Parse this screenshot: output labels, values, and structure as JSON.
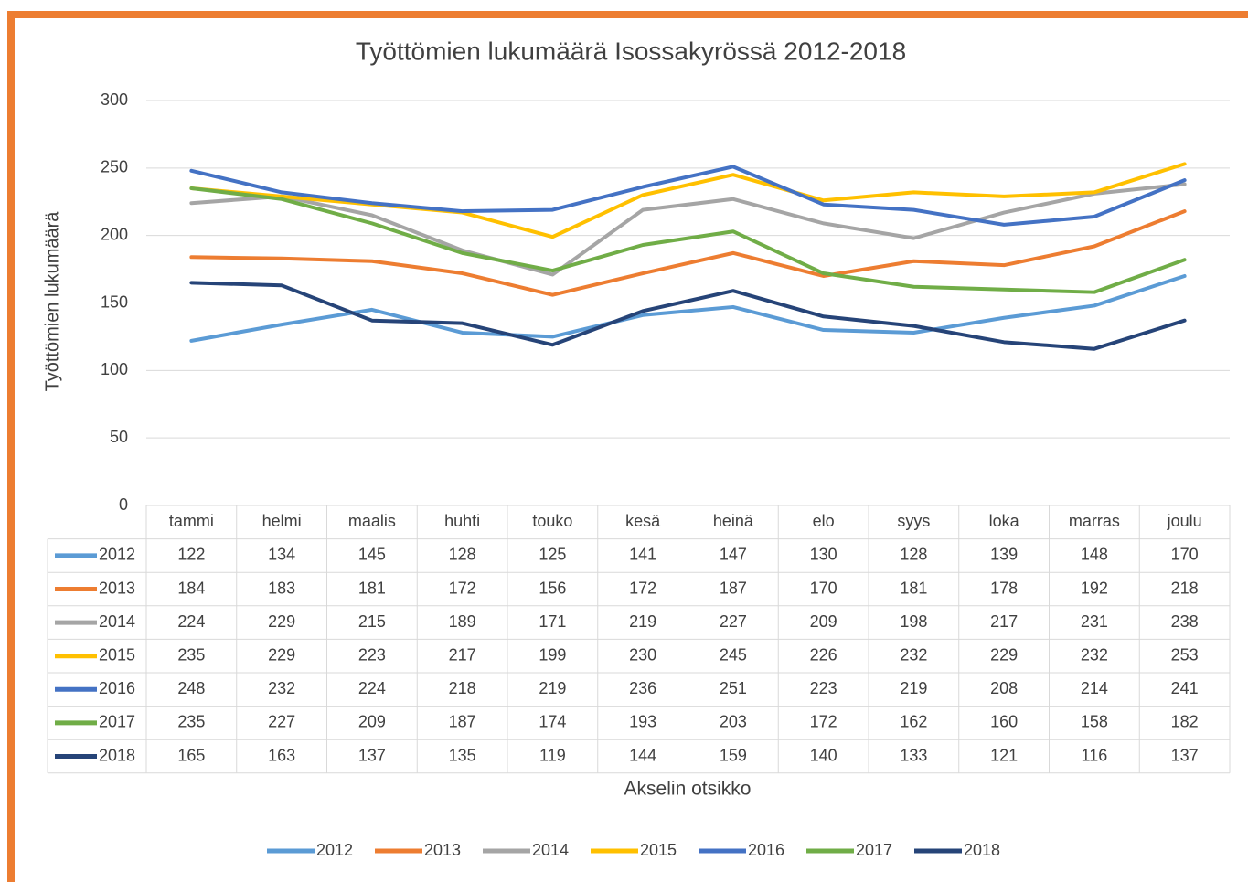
{
  "chart_data": {
    "type": "line",
    "title": "Työttömien lukumäärä Isossakyrössä 2012-2018",
    "y_label": "Työttömien lukumäärä",
    "x_label": "Akselin otsikko",
    "categories": [
      "tammi",
      "helmi",
      "maalis",
      "huhti",
      "touko",
      "kesä",
      "heinä",
      "elo",
      "syys",
      "loka",
      "marras",
      "joulu"
    ],
    "ylim": [
      0,
      300
    ],
    "yticks": [
      0,
      50,
      100,
      150,
      200,
      250,
      300
    ],
    "grid": true,
    "legend": "bottom",
    "series": [
      {
        "name": "2012",
        "color": "#5b9bd5",
        "values": [
          122,
          134,
          145,
          128,
          125,
          141,
          147,
          130,
          128,
          139,
          148,
          170
        ]
      },
      {
        "name": "2013",
        "color": "#ed7d31",
        "values": [
          184,
          183,
          181,
          172,
          156,
          172,
          187,
          170,
          181,
          178,
          192,
          218
        ]
      },
      {
        "name": "2014",
        "color": "#a5a5a5",
        "values": [
          224,
          229,
          215,
          189,
          171,
          219,
          227,
          209,
          198,
          217,
          231,
          238
        ]
      },
      {
        "name": "2015",
        "color": "#ffc000",
        "values": [
          235,
          229,
          223,
          217,
          199,
          230,
          245,
          226,
          232,
          229,
          232,
          253
        ]
      },
      {
        "name": "2016",
        "color": "#4472c4",
        "values": [
          248,
          232,
          224,
          218,
          219,
          236,
          251,
          223,
          219,
          208,
          214,
          241
        ]
      },
      {
        "name": "2017",
        "color": "#70ad47",
        "values": [
          235,
          227,
          209,
          187,
          174,
          193,
          203,
          172,
          162,
          160,
          158,
          182
        ]
      },
      {
        "name": "2018",
        "color": "#264478",
        "values": [
          165,
          163,
          137,
          135,
          119,
          144,
          159,
          140,
          133,
          121,
          116,
          137
        ]
      }
    ]
  }
}
